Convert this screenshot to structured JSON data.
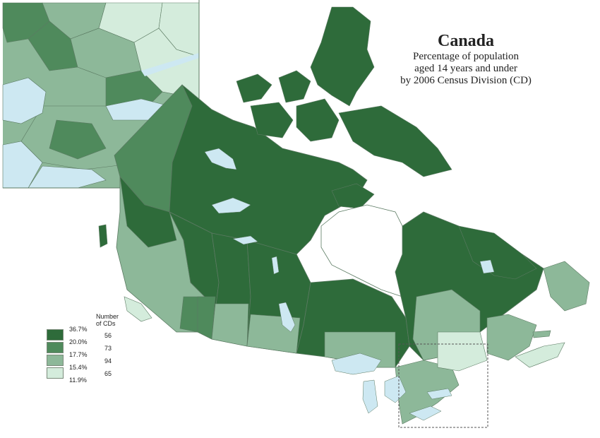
{
  "title": "Canada",
  "subtitle_lines": [
    "Percentage of population",
    "aged 14 years and under",
    "by 2006 Census Division (CD)"
  ],
  "legend": {
    "count_header": "Number of CDs",
    "breaks": [
      "36.7%",
      "20.0%",
      "17.7%",
      "15.4%",
      "11.9%"
    ],
    "classes": [
      {
        "range": "20.0% – 36.7%",
        "count": "56",
        "color": "#2e6b3a"
      },
      {
        "range": "17.7% – 20.0%",
        "count": "73",
        "color": "#4f8a5c"
      },
      {
        "range": "15.4% – 17.7%",
        "count": "94",
        "color": "#8db899"
      },
      {
        "range": "11.9% – 15.4%",
        "count": "65",
        "color": "#d4ecdc"
      }
    ]
  },
  "colors": {
    "water": "#cde8f2",
    "boundary": "#5b7a62",
    "inset_frame": "#555555"
  }
}
